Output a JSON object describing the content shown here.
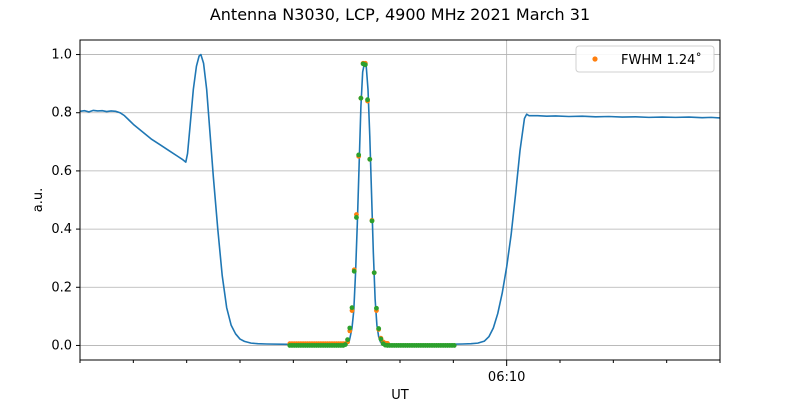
{
  "chart_data": {
    "type": "line",
    "title": "Antenna N3030, LCP, 4900 MHz 2021 March 31",
    "xlabel": "UT",
    "ylabel": "a.u.",
    "ylim": [
      -0.05,
      1.05
    ],
    "yticks": [
      0.0,
      0.2,
      0.4,
      0.6,
      0.8,
      1.0
    ],
    "ytick_labels": [
      "0.0",
      "0.2",
      "0.4",
      "0.6",
      "0.8",
      "1.0"
    ],
    "xlim_seconds": [
      0,
      1440
    ],
    "x_major_ticks": [
      {
        "t": 960,
        "label": "06:10"
      }
    ],
    "x_minor_ticks": [
      0,
      120,
      240,
      360,
      480,
      600,
      720,
      840,
      1080,
      1200,
      1320,
      1440
    ],
    "grid": true,
    "legend": {
      "location": "top-right",
      "entries": [
        {
          "label": "FWHM 1.24$^\\circ$",
          "display": "FWHM 1.24˚"
        }
      ]
    },
    "colors": {
      "main": "#1f77b4",
      "fwhm": "#ff7f0e",
      "fit": "#2ca02c",
      "grid": "#b0b0b0"
    },
    "series": [
      {
        "name": "",
        "kind": "line",
        "points": [
          [
            0,
            0.805
          ],
          [
            10,
            0.807
          ],
          [
            20,
            0.803
          ],
          [
            30,
            0.808
          ],
          [
            40,
            0.806
          ],
          [
            50,
            0.807
          ],
          [
            60,
            0.804
          ],
          [
            70,
            0.806
          ],
          [
            80,
            0.805
          ],
          [
            90,
            0.8
          ],
          [
            100,
            0.79
          ],
          [
            110,
            0.775
          ],
          [
            120,
            0.76
          ],
          [
            140,
            0.735
          ],
          [
            160,
            0.71
          ],
          [
            180,
            0.69
          ],
          [
            200,
            0.67
          ],
          [
            220,
            0.65
          ],
          [
            230,
            0.64
          ],
          [
            238,
            0.63
          ],
          [
            242,
            0.66
          ],
          [
            248,
            0.76
          ],
          [
            255,
            0.88
          ],
          [
            262,
            0.96
          ],
          [
            268,
            0.995
          ],
          [
            272,
            1.0
          ],
          [
            278,
            0.97
          ],
          [
            285,
            0.88
          ],
          [
            292,
            0.74
          ],
          [
            300,
            0.58
          ],
          [
            310,
            0.4
          ],
          [
            320,
            0.24
          ],
          [
            330,
            0.13
          ],
          [
            340,
            0.07
          ],
          [
            350,
            0.04
          ],
          [
            360,
            0.022
          ],
          [
            370,
            0.014
          ],
          [
            385,
            0.008
          ],
          [
            400,
            0.006
          ],
          [
            420,
            0.005
          ],
          [
            470,
            0.004
          ],
          [
            520,
            0.004
          ],
          [
            580,
            0.004
          ],
          [
            600,
            0.005
          ],
          [
            605,
            0.01
          ],
          [
            608,
            0.03
          ],
          [
            612,
            0.06
          ],
          [
            616,
            0.12
          ],
          [
            620,
            0.25
          ],
          [
            624,
            0.42
          ],
          [
            628,
            0.62
          ],
          [
            632,
            0.82
          ],
          [
            636,
            0.94
          ],
          [
            640,
            0.97
          ],
          [
            644,
            0.96
          ],
          [
            648,
            0.88
          ],
          [
            652,
            0.72
          ],
          [
            656,
            0.52
          ],
          [
            660,
            0.32
          ],
          [
            664,
            0.16
          ],
          [
            668,
            0.07
          ],
          [
            672,
            0.03
          ],
          [
            676,
            0.012
          ],
          [
            680,
            0.006
          ],
          [
            700,
            0.004
          ],
          [
            760,
            0.004
          ],
          [
            820,
            0.004
          ],
          [
            860,
            0.005
          ],
          [
            880,
            0.006
          ],
          [
            895,
            0.008
          ],
          [
            910,
            0.015
          ],
          [
            920,
            0.03
          ],
          [
            930,
            0.06
          ],
          [
            940,
            0.11
          ],
          [
            950,
            0.18
          ],
          [
            960,
            0.27
          ],
          [
            970,
            0.38
          ],
          [
            980,
            0.52
          ],
          [
            990,
            0.67
          ],
          [
            1000,
            0.78
          ],
          [
            1005,
            0.795
          ],
          [
            1010,
            0.79
          ],
          [
            1030,
            0.79
          ],
          [
            1050,
            0.788
          ],
          [
            1070,
            0.789
          ],
          [
            1100,
            0.787
          ],
          [
            1130,
            0.788
          ],
          [
            1160,
            0.786
          ],
          [
            1190,
            0.787
          ],
          [
            1220,
            0.785
          ],
          [
            1250,
            0.786
          ],
          [
            1280,
            0.784
          ],
          [
            1310,
            0.785
          ],
          [
            1340,
            0.784
          ],
          [
            1370,
            0.785
          ],
          [
            1400,
            0.783
          ],
          [
            1420,
            0.784
          ],
          [
            1440,
            0.782
          ]
        ]
      },
      {
        "name": "FWHM 1.24˚",
        "kind": "points",
        "points": [
          [
            472,
            0.006
          ],
          [
            477,
            0.006
          ],
          [
            482,
            0.006
          ],
          [
            487,
            0.006
          ],
          [
            492,
            0.006
          ],
          [
            497,
            0.006
          ],
          [
            502,
            0.006
          ],
          [
            507,
            0.006
          ],
          [
            512,
            0.006
          ],
          [
            517,
            0.006
          ],
          [
            522,
            0.006
          ],
          [
            527,
            0.006
          ],
          [
            532,
            0.006
          ],
          [
            537,
            0.006
          ],
          [
            542,
            0.006
          ],
          [
            547,
            0.006
          ],
          [
            552,
            0.006
          ],
          [
            557,
            0.006
          ],
          [
            562,
            0.006
          ],
          [
            567,
            0.006
          ],
          [
            572,
            0.006
          ],
          [
            577,
            0.006
          ],
          [
            582,
            0.006
          ],
          [
            587,
            0.006
          ],
          [
            592,
            0.006
          ],
          [
            597,
            0.006
          ],
          [
            602,
            0.012
          ],
          [
            607,
            0.05
          ],
          [
            612,
            0.12
          ],
          [
            617,
            0.26
          ],
          [
            622,
            0.45
          ],
          [
            627,
            0.65
          ],
          [
            632,
            0.85
          ],
          [
            637,
            0.97
          ],
          [
            642,
            0.97
          ],
          [
            647,
            0.84
          ],
          [
            652,
            0.64
          ],
          [
            657,
            0.43
          ],
          [
            662,
            0.25
          ],
          [
            667,
            0.12
          ],
          [
            672,
            0.055
          ],
          [
            677,
            0.025
          ],
          [
            682,
            0.012
          ],
          [
            687,
            0.008
          ],
          [
            692,
            0.007
          ]
        ]
      },
      {
        "name": "",
        "kind": "points",
        "points": [
          [
            472,
            0.0
          ],
          [
            477,
            0.0
          ],
          [
            482,
            0.0
          ],
          [
            487,
            0.0
          ],
          [
            492,
            0.0
          ],
          [
            497,
            0.0
          ],
          [
            502,
            0.0
          ],
          [
            507,
            0.0
          ],
          [
            512,
            0.0
          ],
          [
            517,
            0.0
          ],
          [
            522,
            0.0
          ],
          [
            527,
            0.0
          ],
          [
            532,
            0.0
          ],
          [
            537,
            0.0
          ],
          [
            542,
            0.0
          ],
          [
            547,
            0.0
          ],
          [
            552,
            0.0
          ],
          [
            557,
            0.0
          ],
          [
            562,
            0.0
          ],
          [
            567,
            0.0
          ],
          [
            572,
            0.0
          ],
          [
            577,
            0.0
          ],
          [
            582,
            0.0
          ],
          [
            587,
            0.0
          ],
          [
            592,
            0.0
          ],
          [
            597,
            0.003
          ],
          [
            602,
            0.02
          ],
          [
            607,
            0.06
          ],
          [
            612,
            0.13
          ],
          [
            617,
            0.255
          ],
          [
            622,
            0.44
          ],
          [
            627,
            0.655
          ],
          [
            632,
            0.85
          ],
          [
            637,
            0.968
          ],
          [
            642,
            0.965
          ],
          [
            647,
            0.845
          ],
          [
            652,
            0.64
          ],
          [
            657,
            0.428
          ],
          [
            662,
            0.25
          ],
          [
            667,
            0.128
          ],
          [
            672,
            0.058
          ],
          [
            677,
            0.022
          ],
          [
            682,
            0.006
          ],
          [
            687,
            0.001
          ],
          [
            692,
            0.0
          ],
          [
            697,
            0.0
          ],
          [
            702,
            0.0
          ],
          [
            707,
            0.0
          ],
          [
            712,
            0.0
          ],
          [
            717,
            0.0
          ],
          [
            722,
            0.0
          ],
          [
            727,
            0.0
          ],
          [
            732,
            0.0
          ],
          [
            737,
            0.0
          ],
          [
            742,
            0.0
          ],
          [
            747,
            0.0
          ],
          [
            752,
            0.0
          ],
          [
            757,
            0.0
          ],
          [
            762,
            0.0
          ],
          [
            767,
            0.0
          ],
          [
            772,
            0.0
          ],
          [
            777,
            0.0
          ],
          [
            782,
            0.0
          ],
          [
            787,
            0.0
          ],
          [
            792,
            0.0
          ],
          [
            797,
            0.0
          ],
          [
            802,
            0.0
          ],
          [
            807,
            0.0
          ],
          [
            812,
            0.0
          ],
          [
            817,
            0.0
          ],
          [
            822,
            0.0
          ],
          [
            827,
            0.0
          ],
          [
            832,
            0.0
          ],
          [
            837,
            0.0
          ],
          [
            842,
            0.0
          ]
        ]
      }
    ]
  }
}
